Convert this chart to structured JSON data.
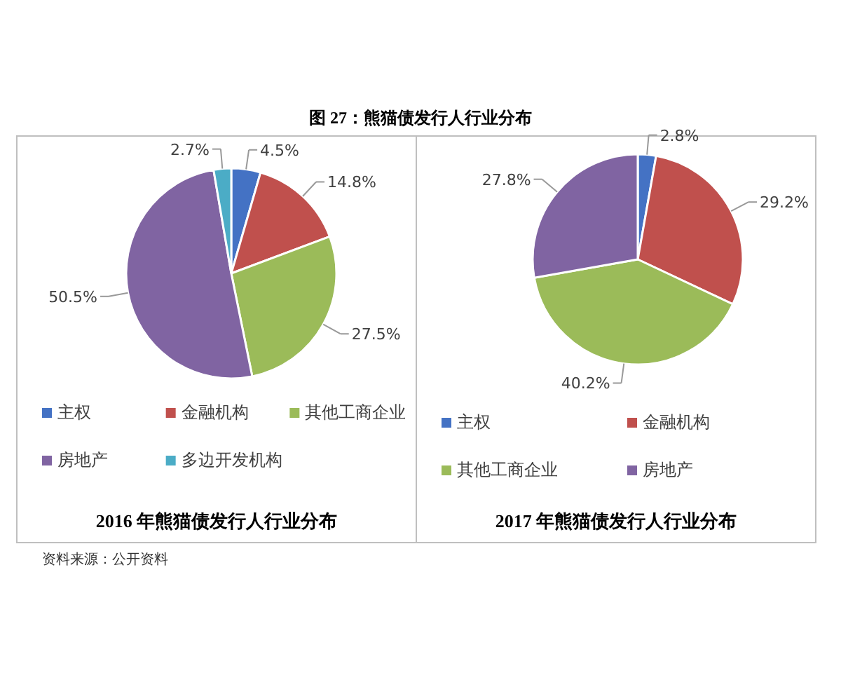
{
  "chart_data": [
    {
      "type": "pie",
      "title": "2016 年熊猫债发行人行业分布",
      "annotations": [
        "图 27：熊猫债发行人行业分布",
        "资料来源：公开资料"
      ],
      "categories": [
        "主权",
        "金融机构",
        "其他工商企业",
        "房地产",
        "多边开发机构"
      ],
      "values": [
        4.5,
        14.8,
        27.5,
        50.5,
        2.7
      ],
      "value_labels": [
        "4.5%",
        "14.8%",
        "27.5%",
        "50.5%",
        "2.7%"
      ],
      "colors": [
        "#4472c4",
        "#c0504d",
        "#9bbb59",
        "#8064a2",
        "#4bacc6"
      ],
      "legend": "bottom"
    },
    {
      "type": "pie",
      "title": "2017 年熊猫债发行人行业分布",
      "categories": [
        "主权",
        "金融机构",
        "其他工商企业",
        "房地产"
      ],
      "values": [
        2.8,
        29.2,
        40.2,
        27.8
      ],
      "value_labels": [
        "2.8%",
        "29.2%",
        "40.2%",
        "27.8%"
      ],
      "colors": [
        "#4472c4",
        "#c0504d",
        "#9bbb59",
        "#8064a2"
      ],
      "legend": "bottom"
    }
  ]
}
